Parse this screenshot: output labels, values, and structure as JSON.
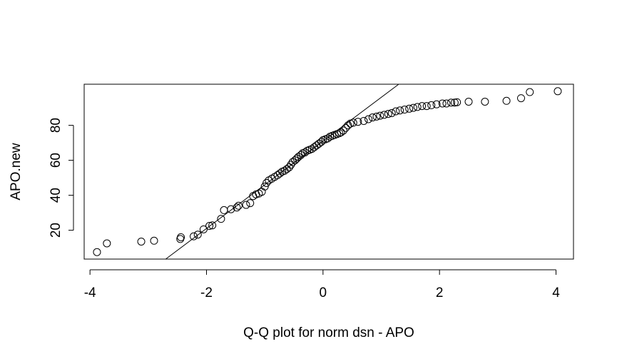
{
  "chart_data": {
    "type": "scatter",
    "title": "",
    "xlabel": "Q-Q plot for norm dsn - APO",
    "ylabel": "APO.new",
    "xlim": [
      -4.1,
      4.3
    ],
    "ylim": [
      3.5,
      103.5
    ],
    "x_ticks": [
      -4,
      -2,
      0,
      2,
      4
    ],
    "x_tick_labels": [
      "-4",
      "-2",
      "0",
      "2",
      "4"
    ],
    "y_ticks": [
      20,
      40,
      60,
      80
    ],
    "y_tick_labels": [
      "20",
      "40",
      "60",
      "80"
    ],
    "grid": false,
    "legend": "none",
    "reference_line": {
      "intercept": 71.0,
      "slope": 25.0
    },
    "series": [
      {
        "marker": "open-circle",
        "color": "#000000",
        "points": [
          [
            -3.88,
            7.5
          ],
          [
            -3.71,
            12.5
          ],
          [
            -3.12,
            13.5
          ],
          [
            -2.9,
            14.0
          ],
          [
            -2.45,
            15.0
          ],
          [
            -2.44,
            16.0
          ],
          [
            -2.22,
            16.5
          ],
          [
            -2.15,
            17.5
          ],
          [
            -2.05,
            20.5
          ],
          [
            -1.95,
            22.5
          ],
          [
            -1.9,
            22.8
          ],
          [
            -1.75,
            26.5
          ],
          [
            -1.7,
            31.5
          ],
          [
            -1.58,
            32.0
          ],
          [
            -1.48,
            33.0
          ],
          [
            -1.45,
            34.0
          ],
          [
            -1.32,
            34.5
          ],
          [
            -1.25,
            35.5
          ],
          [
            -1.2,
            39.5
          ],
          [
            -1.15,
            40.5
          ],
          [
            -1.1,
            41.0
          ],
          [
            -1.05,
            42.0
          ],
          [
            -1.0,
            45.0
          ],
          [
            -0.97,
            47.0
          ],
          [
            -0.93,
            48.5
          ],
          [
            -0.88,
            49.5
          ],
          [
            -0.83,
            50.5
          ],
          [
            -0.78,
            51.5
          ],
          [
            -0.74,
            52.5
          ],
          [
            -0.7,
            53.5
          ],
          [
            -0.66,
            54.0
          ],
          [
            -0.62,
            55.0
          ],
          [
            -0.58,
            56.0
          ],
          [
            -0.55,
            57.5
          ],
          [
            -0.52,
            59.0
          ],
          [
            -0.48,
            60.0
          ],
          [
            -0.45,
            61.0
          ],
          [
            -0.42,
            62.0
          ],
          [
            -0.38,
            63.0
          ],
          [
            -0.35,
            64.0
          ],
          [
            -0.31,
            64.5
          ],
          [
            -0.27,
            65.5
          ],
          [
            -0.23,
            66.0
          ],
          [
            -0.19,
            66.5
          ],
          [
            -0.15,
            67.5
          ],
          [
            -0.11,
            68.5
          ],
          [
            -0.07,
            69.5
          ],
          [
            -0.03,
            70.5
          ],
          [
            0.0,
            71.5
          ],
          [
            0.04,
            72.0
          ],
          [
            0.08,
            72.5
          ],
          [
            0.12,
            73.5
          ],
          [
            0.16,
            74.0
          ],
          [
            0.2,
            74.5
          ],
          [
            0.24,
            75.0
          ],
          [
            0.28,
            75.5
          ],
          [
            0.31,
            76.0
          ],
          [
            0.35,
            77.0
          ],
          [
            0.39,
            78.5
          ],
          [
            0.43,
            80.0
          ],
          [
            0.47,
            81.0
          ],
          [
            0.52,
            81.5
          ],
          [
            0.6,
            82.0
          ],
          [
            0.7,
            82.5
          ],
          [
            0.78,
            83.5
          ],
          [
            0.85,
            84.5
          ],
          [
            0.92,
            85.0
          ],
          [
            0.98,
            85.5
          ],
          [
            1.05,
            86.0
          ],
          [
            1.12,
            86.5
          ],
          [
            1.18,
            87.0
          ],
          [
            1.25,
            88.0
          ],
          [
            1.32,
            88.5
          ],
          [
            1.4,
            89.0
          ],
          [
            1.48,
            89.5
          ],
          [
            1.55,
            90.0
          ],
          [
            1.62,
            90.5
          ],
          [
            1.7,
            91.0
          ],
          [
            1.78,
            91.0
          ],
          [
            1.86,
            91.5
          ],
          [
            1.95,
            92.0
          ],
          [
            2.05,
            92.5
          ],
          [
            2.12,
            92.5
          ],
          [
            2.2,
            93.0
          ],
          [
            2.26,
            93.0
          ],
          [
            2.3,
            93.2
          ],
          [
            2.5,
            93.5
          ],
          [
            2.78,
            93.5
          ],
          [
            3.15,
            94.0
          ],
          [
            3.4,
            95.5
          ],
          [
            3.55,
            99.0
          ],
          [
            4.03,
            99.5
          ]
        ]
      }
    ]
  }
}
